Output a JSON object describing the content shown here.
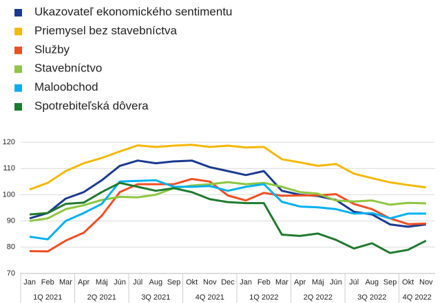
{
  "chart_data": {
    "type": "line",
    "categories": [
      "Jan",
      "Feb",
      "Mar",
      "Apr",
      "Máj",
      "Jún",
      "Júl",
      "Aug",
      "Sep",
      "Okt",
      "Nov",
      "Dec",
      "Jan",
      "Feb",
      "Mar",
      "Apr",
      "Máj",
      "Jún",
      "Júl",
      "Aug",
      "Sep",
      "Okt",
      "Nov"
    ],
    "quarters": [
      "1Q 2021",
      "2Q 2021",
      "3Q 2021",
      "4Q 2021",
      "1Q 2022",
      "2Q 2022",
      "3Q 2022",
      "4Q 2022"
    ],
    "ylim": [
      70,
      120
    ],
    "yticks": [
      70,
      80,
      90,
      100,
      110,
      120
    ],
    "grid": true,
    "series": [
      {
        "name": "Ukazovateľ ekonomického sentimentu",
        "color": "#1a3a8f",
        "values": [
          91,
          93,
          98.5,
          101,
          105.5,
          111,
          113,
          112,
          112.7,
          113,
          110.5,
          109,
          107.5,
          109,
          101.5,
          100,
          99.5,
          98,
          93.5,
          92.5,
          88.7,
          87.8,
          88.7
        ]
      },
      {
        "name": "Priemysel bez stavebníctva",
        "color": "#f5b800",
        "values": [
          102,
          104.5,
          109,
          112,
          114,
          116.5,
          118.8,
          118.2,
          118.7,
          119,
          118.2,
          118.7,
          118,
          118.2,
          113.5,
          112.3,
          111,
          111.7,
          108,
          106.3,
          104.7,
          103.7,
          102.8
        ]
      },
      {
        "name": "Služby",
        "color": "#f04e23",
        "values": [
          78.5,
          78.4,
          82.5,
          85.5,
          92,
          101,
          104,
          104,
          104,
          106,
          105,
          99.7,
          97.8,
          100.7,
          99.6,
          99.7,
          99.8,
          100.2,
          96.5,
          94.5,
          91,
          88.8,
          89
        ]
      },
      {
        "name": "Stavebníctvo",
        "color": "#8dc63f",
        "values": [
          90,
          91,
          94.5,
          96,
          98,
          99.2,
          99,
          100,
          102.5,
          103.5,
          104,
          104.8,
          104,
          104.5,
          103,
          101,
          100.4,
          97.8,
          97.4,
          97.8,
          96.2,
          96.9,
          96.7
        ]
      },
      {
        "name": "Maloobchod",
        "color": "#00b0f0",
        "values": [
          84,
          83,
          90,
          93,
          96.5,
          105,
          105.3,
          105.5,
          103,
          103,
          103.3,
          101.5,
          103,
          104,
          97.3,
          95.5,
          95.2,
          94.5,
          92.8,
          93,
          91,
          92.8,
          92.8
        ]
      },
      {
        "name": "Spotrebiteľská dôvera",
        "color": "#1e7a2e",
        "values": [
          92.5,
          93,
          96.5,
          97,
          101,
          104.5,
          103,
          101.5,
          102.5,
          101,
          98.3,
          97.2,
          96.8,
          96.8,
          84.8,
          84.3,
          85.2,
          82.8,
          79.5,
          81.5,
          77.8,
          79,
          82.5
        ]
      }
    ]
  }
}
